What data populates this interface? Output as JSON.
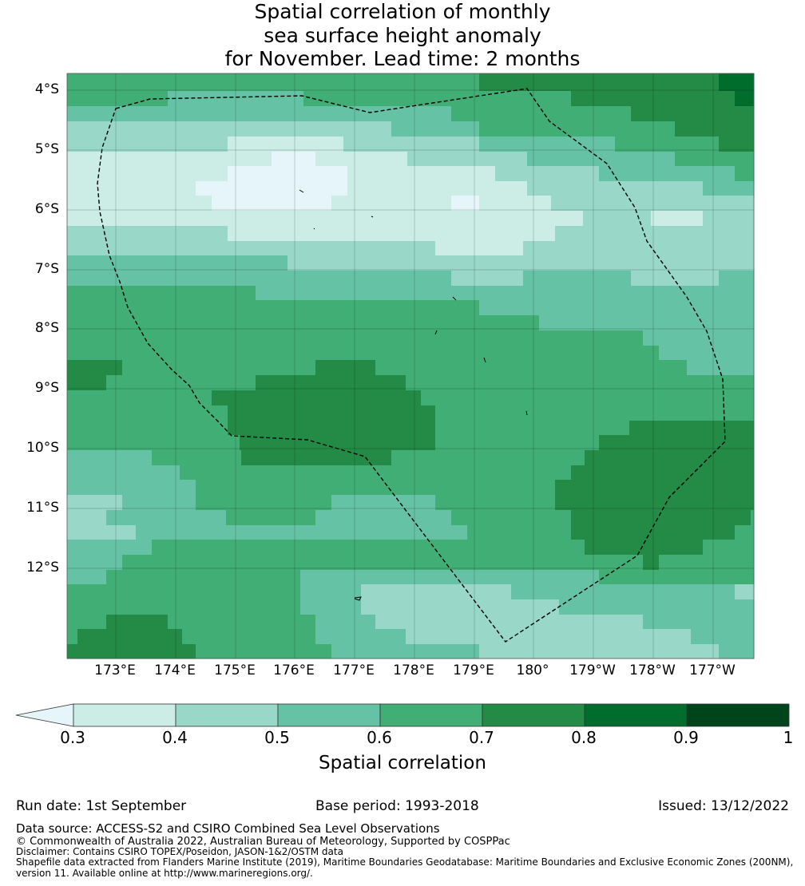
{
  "title_lines": [
    "Spatial correlation of monthly",
    "sea surface height anomaly",
    "for November. Lead time: 2 months"
  ],
  "map": {
    "lat_labels": [
      "4°S",
      "5°S",
      "6°S",
      "7°S",
      "8°S",
      "9°S",
      "10°S",
      "11°S",
      "12°S"
    ],
    "lon_labels": [
      "173°E",
      "174°E",
      "175°E",
      "176°E",
      "177°E",
      "178°E",
      "179°E",
      "180°",
      "179°W",
      "178°W",
      "177°W"
    ],
    "lat_range": [
      -13.5,
      -3.7
    ],
    "lon_range": [
      172.2,
      183.7
    ],
    "boundary": "dashed"
  },
  "colorbar": {
    "label": "Spatial correlation",
    "tick_labels": [
      "0.3",
      "0.4",
      "0.5",
      "0.6",
      "0.7",
      "0.8",
      "0.9",
      "1"
    ],
    "bins": [
      {
        "min": 0.3,
        "max": 0.4,
        "color": "#ccece6"
      },
      {
        "min": 0.4,
        "max": 0.5,
        "color": "#99d8c9"
      },
      {
        "min": 0.5,
        "max": 0.6,
        "color": "#66c2a4"
      },
      {
        "min": 0.6,
        "max": 0.7,
        "color": "#41ae76"
      },
      {
        "min": 0.7,
        "max": 0.8,
        "color": "#238b45"
      },
      {
        "min": 0.8,
        "max": 0.9,
        "color": "#006d2c"
      },
      {
        "min": 0.9,
        "max": 1.0,
        "color": "#00441b"
      }
    ],
    "under_color": "#e5f5f9"
  },
  "footer": {
    "run_date": "Run date: 1st September",
    "base_period": "Base period: 1993-2018",
    "issued": "Issued: 13/12/2022",
    "data_source": "Data source: ACCESS-S2 and CSIRO Combined Sea Level Observations",
    "copyright": "© Commonwealth of Australia 2022, Australian Bureau of Meteorology, Supported by COSPPac",
    "disclaimer": "Disclaimer: Contains CSIRO TOPEX/Poseidon, JASON-1&2/OSTM data",
    "shapefile_line1": "Shapefile data extracted from Flanders Marine Institute (2019), Maritime Boundaries Geodatabase: Maritime Boundaries and Exclusive Economic Zones (200NM),",
    "shapefile_line2": "version 11. Available online at http://www.marineregions.org/."
  }
}
